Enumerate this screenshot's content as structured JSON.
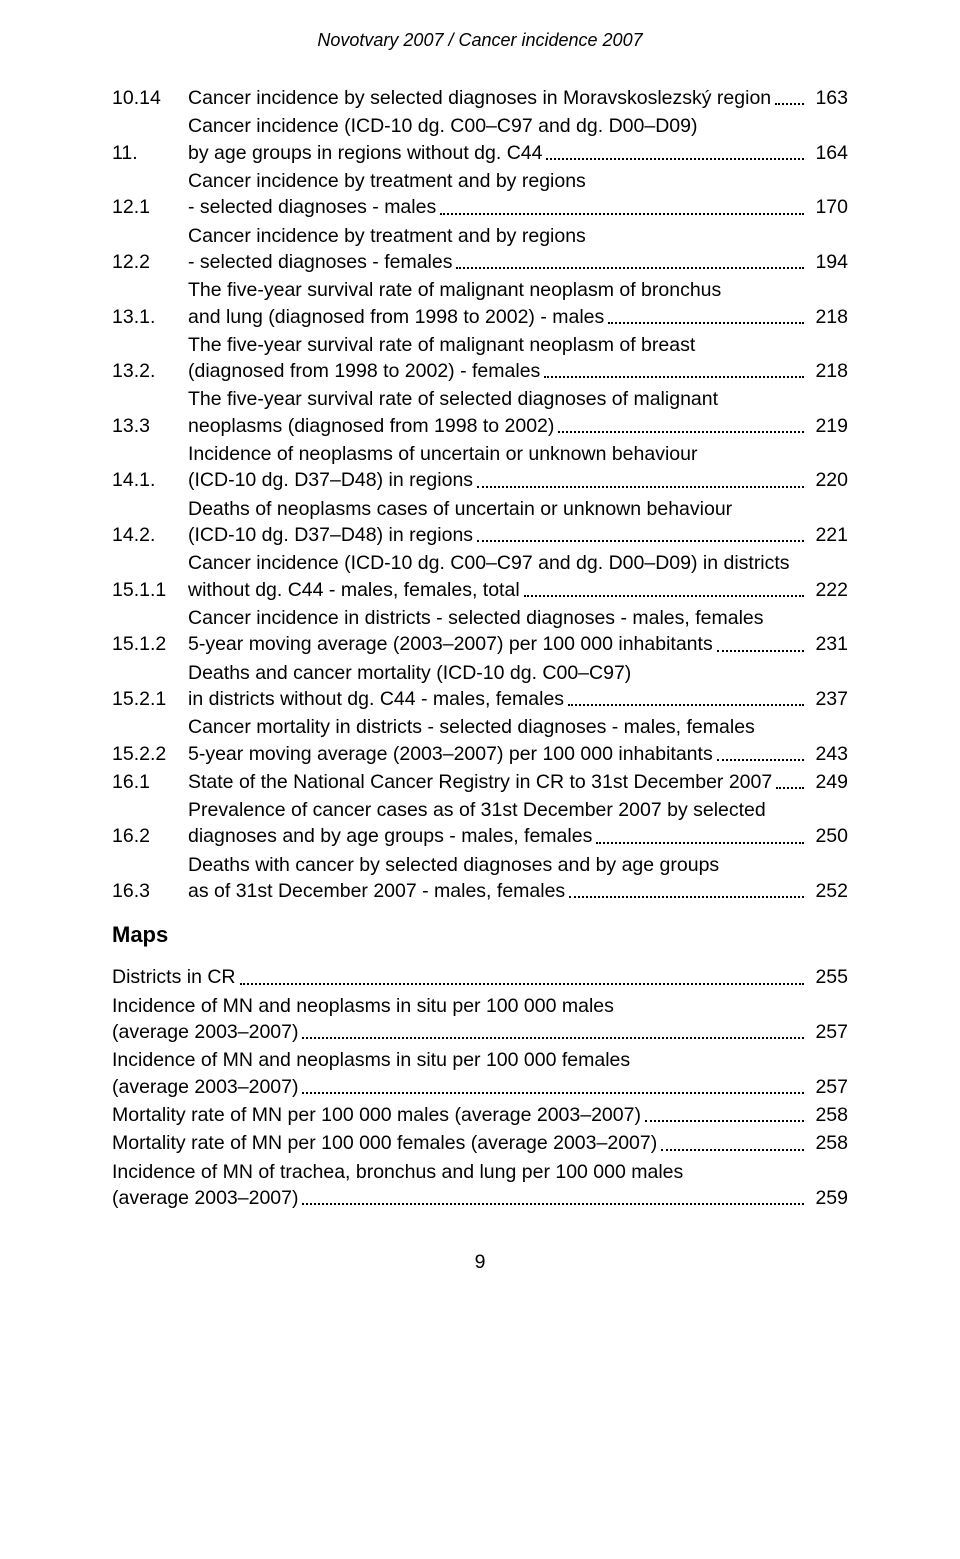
{
  "header": "Novotvary 2007 / Cancer incidence 2007",
  "toc": [
    {
      "num": "10.14",
      "lines": [
        "Cancer incidence by selected diagnoses in Moravskoslezský region"
      ],
      "page": "163"
    },
    {
      "num": "11.",
      "lines": [
        "Cancer incidence (ICD-10 dg. C00‒C97 and dg. D00‒D09)",
        "by age groups in regions without dg. C44"
      ],
      "page": "164"
    },
    {
      "num": "12.1",
      "lines": [
        "Cancer incidence by treatment and by regions",
        "- selected diagnoses - males"
      ],
      "page": "170"
    },
    {
      "num": "12.2",
      "lines": [
        "Cancer incidence by treatment and by regions",
        "- selected diagnoses - females"
      ],
      "page": "194"
    },
    {
      "num": "13.1.",
      "lines": [
        "The five-year survival rate of malignant neoplasm of bronchus",
        "and lung (diagnosed from 1998 to 2002) - males"
      ],
      "page": "218"
    },
    {
      "num": "13.2.",
      "lines": [
        "The five-year survival rate of malignant neoplasm of breast",
        "(diagnosed from 1998 to 2002) - females"
      ],
      "page": "218"
    },
    {
      "num": "13.3",
      "lines": [
        "The five-year survival rate of selected diagnoses of malignant",
        "neoplasms (diagnosed from 1998 to 2002)"
      ],
      "page": "219"
    },
    {
      "num": "14.1.",
      "lines": [
        "Incidence of neoplasms of uncertain or unknown behaviour",
        "(ICD-10 dg. D37‒D48) in regions"
      ],
      "page": "220"
    },
    {
      "num": "14.2.",
      "lines": [
        "Deaths of neoplasms cases of uncertain or unknown behaviour",
        "(ICD-10 dg. D37‒D48) in regions"
      ],
      "page": "221"
    },
    {
      "num": "15.1.1",
      "lines": [
        "Cancer incidence (ICD-10 dg. C00‒C97 and dg. D00‒D09) in districts",
        "without dg. C44 - males, females, total"
      ],
      "page": "222"
    },
    {
      "num": "15.1.2",
      "lines": [
        "Cancer incidence in districts - selected diagnoses - males, females",
        "5-year moving average (2003‒2007) per 100 000 inhabitants"
      ],
      "page": "231"
    },
    {
      "num": "15.2.1",
      "lines": [
        "Deaths and cancer mortality (ICD-10 dg. C00‒C97)",
        "in districts without dg. C44 - males, females"
      ],
      "page": "237"
    },
    {
      "num": "15.2.2",
      "lines": [
        "Cancer mortality in districts - selected diagnoses - males, females",
        "5-year moving average (2003‒2007) per 100 000 inhabitants"
      ],
      "page": "243"
    },
    {
      "num": "16.1",
      "lines": [
        "State of the National Cancer Registry in CR to 31st December 2007"
      ],
      "page": "249"
    },
    {
      "num": "16.2",
      "lines": [
        "Prevalence of cancer cases as of 31st December 2007 by selected",
        "diagnoses and by age groups - males, females"
      ],
      "page": "250"
    },
    {
      "num": "16.3",
      "lines": [
        "Deaths with cancer by selected diagnoses and by age groups",
        "as of 31st December 2007 - males, females"
      ],
      "page": "252"
    }
  ],
  "maps_title": "Maps",
  "maps": [
    {
      "lines": [
        "Districts in CR"
      ],
      "page": "255"
    },
    {
      "lines": [
        "Incidence of MN and neoplasms in situ per 100 000 males",
        "(average 2003‒2007)"
      ],
      "page": "257"
    },
    {
      "lines": [
        "Incidence of MN and neoplasms in situ per 100 000 females",
        "(average 2003‒2007)"
      ],
      "page": "257"
    },
    {
      "lines": [
        "Mortality rate of MN per 100 000 males (average 2003‒2007)"
      ],
      "page": "258"
    },
    {
      "lines": [
        "Mortality rate of MN per 100 000 females (average 2003‒2007)"
      ],
      "page": "258"
    },
    {
      "lines": [
        "Incidence of MN of trachea, bronchus and lung per 100 000 males",
        "(average 2003‒2007)"
      ],
      "page": "259"
    }
  ],
  "footer": "9"
}
